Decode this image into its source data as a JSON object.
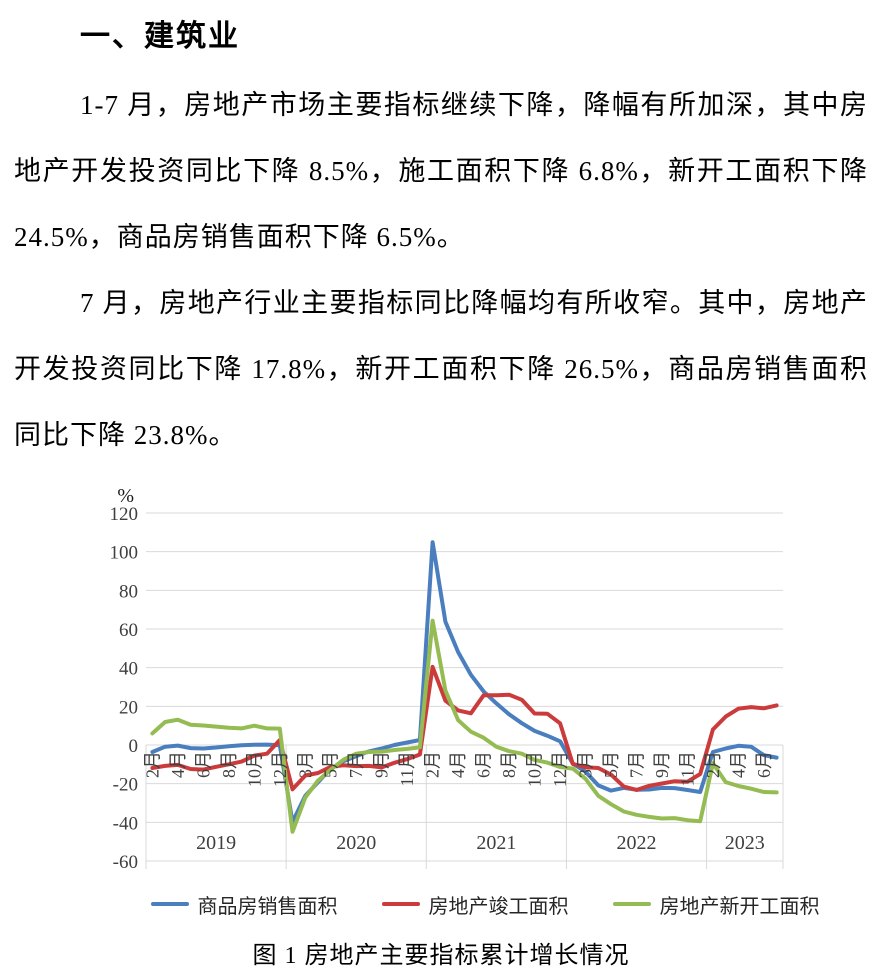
{
  "document": {
    "heading": "一、建筑业",
    "paragraphs": [
      "1-7 月，房地产市场主要指标继续下降，降幅有所加深，其中房地产开发投资同比下降 8.5%，施工面积下降 6.8%，新开工面积下降 24.5%，商品房销售面积下降 6.5%。",
      "7 月，房地产行业主要指标同比降幅均有所收窄。其中，房地产开发投资同比下降 17.8%，新开工面积下降 26.5%，商品房销售面积同比下降 23.8%。"
    ],
    "figure_caption": "图 1 房地产主要指标累计增长情况"
  },
  "chart_data": {
    "type": "line",
    "unit_label": "%",
    "ylim": [
      -60,
      120
    ],
    "ytick_step": 20,
    "grid": true,
    "legend_position": "bottom",
    "grid_color": "#d9d9d9",
    "x_labels": [
      "2月",
      "",
      "4月",
      "",
      "6月",
      "",
      "8月",
      "",
      "10月",
      "",
      "12月",
      "",
      "3月",
      "",
      "5月",
      "",
      "7月",
      "",
      "9月",
      "",
      "11月",
      "",
      "2月",
      "",
      "4月",
      "",
      "6月",
      "",
      "8月",
      "",
      "10月",
      "",
      "12月",
      "",
      "3月",
      "",
      "5月",
      "",
      "7月",
      "",
      "9月",
      "",
      "11月",
      "",
      "2月",
      "",
      "4月",
      "",
      "6月",
      ""
    ],
    "year_groups": [
      {
        "year": "2019",
        "count": 11
      },
      {
        "year": "2020",
        "count": 11
      },
      {
        "year": "2021",
        "count": 11
      },
      {
        "year": "2022",
        "count": 11
      },
      {
        "year": "2023",
        "count": 6
      }
    ],
    "series": [
      {
        "name": "商品房销售面积",
        "color": "#4a7ebe",
        "values": [
          -3.6,
          -0.9,
          -0.3,
          -1.6,
          -1.8,
          -1.3,
          -0.6,
          -0.1,
          0.1,
          0.2,
          -0.1,
          -39.9,
          -26.3,
          -19.3,
          -12.3,
          -8.4,
          -5.8,
          -3.3,
          -1.8,
          0.0,
          1.3,
          2.6,
          104.9,
          63.8,
          48.1,
          36.3,
          27.7,
          21.5,
          15.9,
          11.3,
          7.3,
          4.8,
          1.9,
          -9.6,
          -13.8,
          -20.9,
          -23.6,
          -22.2,
          -23.1,
          -23.0,
          -22.2,
          -22.3,
          -23.3,
          -24.3,
          -3.6,
          -1.8,
          -0.4,
          -0.9,
          -5.3,
          -6.5
        ]
      },
      {
        "name": "房地产竣工面积",
        "color": "#cc3b3c",
        "values": [
          -11.9,
          -10.8,
          -10.3,
          -12.4,
          -12.7,
          -11.3,
          -10.0,
          -8.6,
          -5.5,
          -4.5,
          2.6,
          -22.9,
          -15.8,
          -14.5,
          -11.3,
          -10.5,
          -10.9,
          -10.8,
          -11.6,
          -9.2,
          -7.3,
          -4.9,
          40.4,
          22.9,
          17.9,
          16.4,
          25.7,
          25.7,
          26.0,
          23.4,
          16.3,
          16.2,
          11.2,
          -9.8,
          -11.5,
          -11.9,
          -15.3,
          -21.5,
          -23.3,
          -21.1,
          -19.9,
          -18.7,
          -19.0,
          -15.0,
          8.0,
          14.7,
          18.8,
          19.6,
          19.0,
          20.5
        ]
      },
      {
        "name": "房地产新开工面积",
        "color": "#94bc52",
        "values": [
          6.0,
          11.9,
          13.1,
          10.5,
          10.1,
          9.5,
          8.9,
          8.6,
          10.0,
          8.6,
          8.5,
          -44.9,
          -27.2,
          -18.4,
          -12.8,
          -7.6,
          -4.5,
          -3.6,
          -3.4,
          -2.6,
          -2.0,
          -1.2,
          64.3,
          28.2,
          12.9,
          6.9,
          3.8,
          -0.9,
          -3.2,
          -4.5,
          -7.7,
          -9.1,
          -11.4,
          -12.2,
          -17.5,
          -26.3,
          -30.6,
          -34.4,
          -36.1,
          -37.2,
          -38.0,
          -37.8,
          -38.9,
          -39.4,
          -9.4,
          -19.2,
          -21.2,
          -22.6,
          -24.3,
          -24.5
        ]
      }
    ]
  }
}
